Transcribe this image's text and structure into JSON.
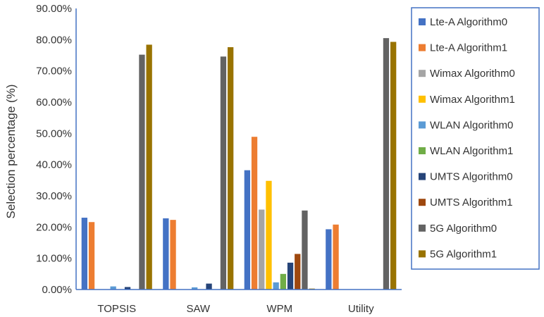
{
  "chart_data": {
    "type": "bar",
    "title": "",
    "xlabel": "",
    "ylabel": "Selection percentage (%)",
    "ylim": [
      0,
      90
    ],
    "y_tick_format": "percent-2dp",
    "y_ticks": [
      "0.00%",
      "10.00%",
      "20.00%",
      "30.00%",
      "40.00%",
      "50.00%",
      "60.00%",
      "70.00%",
      "80.00%",
      "90.00%"
    ],
    "grid": false,
    "legend_position": "right",
    "categories": [
      "TOPSIS",
      "SAW",
      "WPM",
      "Utility"
    ],
    "series": [
      {
        "name": "Lte-A Algorithm0",
        "color": "#4472C4",
        "values": [
          23.0,
          22.8,
          38.2,
          19.3
        ]
      },
      {
        "name": "Lte-A Algorithm1",
        "color": "#ED7D31",
        "values": [
          21.6,
          22.3,
          48.9,
          20.8
        ]
      },
      {
        "name": "Wimax Algorithm0",
        "color": "#A5A5A5",
        "values": [
          0,
          0,
          25.6,
          0
        ]
      },
      {
        "name": "Wimax Algorithm1",
        "color": "#FFC000",
        "values": [
          0,
          0,
          34.8,
          0
        ]
      },
      {
        "name": "WLAN Algorithm0",
        "color": "#5B9BD5",
        "values": [
          1.0,
          0.7,
          2.3,
          0
        ]
      },
      {
        "name": "WLAN Algorithm1",
        "color": "#70AD47",
        "values": [
          0,
          0,
          5.0,
          0
        ]
      },
      {
        "name": "UMTS Algorithm0",
        "color": "#264478",
        "values": [
          0.8,
          1.9,
          8.6,
          0
        ]
      },
      {
        "name": "UMTS Algorithm1",
        "color": "#9E480E",
        "values": [
          0,
          0,
          11.4,
          0
        ]
      },
      {
        "name": "5G Algorithm0",
        "color": "#636363",
        "values": [
          75.2,
          74.6,
          25.3,
          80.5
        ]
      },
      {
        "name": "5G Algorithm1",
        "color": "#997300",
        "values": [
          78.4,
          77.6,
          0.3,
          79.3
        ]
      }
    ]
  },
  "colors": {
    "axis": "#4472C4",
    "legend_border": "#4472C4"
  }
}
